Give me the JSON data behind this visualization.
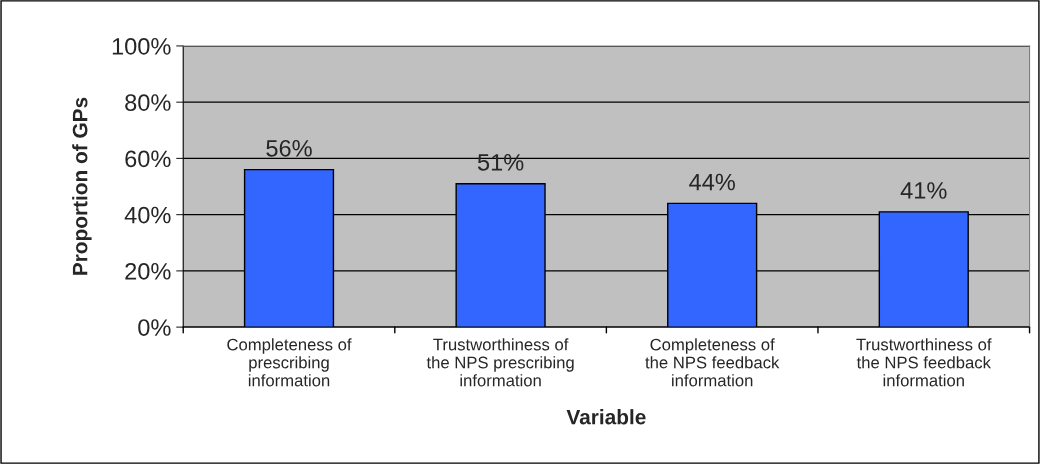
{
  "chart_data": {
    "type": "bar",
    "xlabel": "Variable",
    "ylabel": "Proportion of GPs",
    "categories": [
      "Completeness of\nprescribing\ninformation",
      "Trustworthiness of\nthe NPS prescribing\ninformation",
      "Completeness of\nthe NPS feedback\ninformation",
      "Trustworthiness of\nthe NPS feedback\ninformation"
    ],
    "values": [
      56,
      51,
      44,
      41
    ],
    "color": "#3366ff",
    "value_labels": [
      "56%",
      "51%",
      "44%",
      "41%"
    ],
    "ylim": [
      0,
      100
    ],
    "yticks": [
      {
        "value": 0,
        "label": "0%"
      },
      {
        "value": 20,
        "label": "20%"
      },
      {
        "value": 40,
        "label": "40%"
      },
      {
        "value": 60,
        "label": "60%"
      },
      {
        "value": 80,
        "label": "80%"
      },
      {
        "value": 100,
        "label": "100%"
      }
    ],
    "grid": "y",
    "legend": false
  }
}
